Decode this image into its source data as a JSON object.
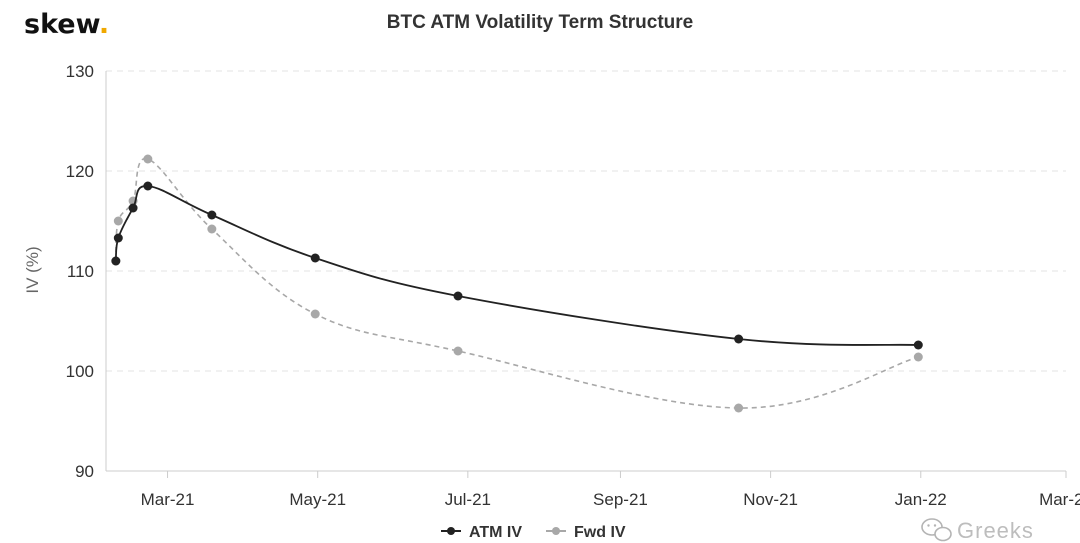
{
  "brand": {
    "name": "skew",
    "dot": ".",
    "dot_color": "#f0a800"
  },
  "watermark": {
    "text": "Greeks",
    "icon": "wechat-icon"
  },
  "chart_data": {
    "type": "line",
    "title": "BTC ATM Volatility Term Structure",
    "ylabel": "IV (%)",
    "xlabel": "",
    "ylim": [
      90,
      130
    ],
    "xlim": [
      "2021-02-04",
      "2022-03-01"
    ],
    "y_ticks": [
      90,
      100,
      110,
      120,
      130
    ],
    "x_ticks": [
      {
        "date": "2021-03-01",
        "label": "Mar-21"
      },
      {
        "date": "2021-05-01",
        "label": "May-21"
      },
      {
        "date": "2021-07-01",
        "label": "Jul-21"
      },
      {
        "date": "2021-09-01",
        "label": "Sep-21"
      },
      {
        "date": "2021-11-01",
        "label": "Nov-21"
      },
      {
        "date": "2022-01-01",
        "label": "Jan-22"
      },
      {
        "date": "2022-03-01",
        "label": "Mar-22"
      }
    ],
    "grid": true,
    "legend": "bottom-center",
    "series": [
      {
        "name": "ATM IV",
        "color": "#222222",
        "dash": "solid",
        "x": [
          "2021-02-08",
          "2021-02-09",
          "2021-02-15",
          "2021-02-21",
          "2021-03-19",
          "2021-04-30",
          "2021-06-27",
          "2021-10-19",
          "2021-12-31"
        ],
        "values": [
          111.0,
          113.3,
          116.3,
          118.5,
          115.6,
          111.3,
          107.5,
          103.2,
          102.6
        ]
      },
      {
        "name": "Fwd IV",
        "color": "#a8a8a8",
        "dash": "dashed",
        "x": [
          "2021-02-08",
          "2021-02-09",
          "2021-02-15",
          "2021-02-21",
          "2021-03-19",
          "2021-04-30",
          "2021-06-27",
          "2021-10-19",
          "2021-12-31"
        ],
        "values": [
          111.0,
          115.0,
          117.0,
          121.2,
          114.2,
          105.7,
          102.0,
          96.3,
          101.4
        ]
      }
    ]
  }
}
